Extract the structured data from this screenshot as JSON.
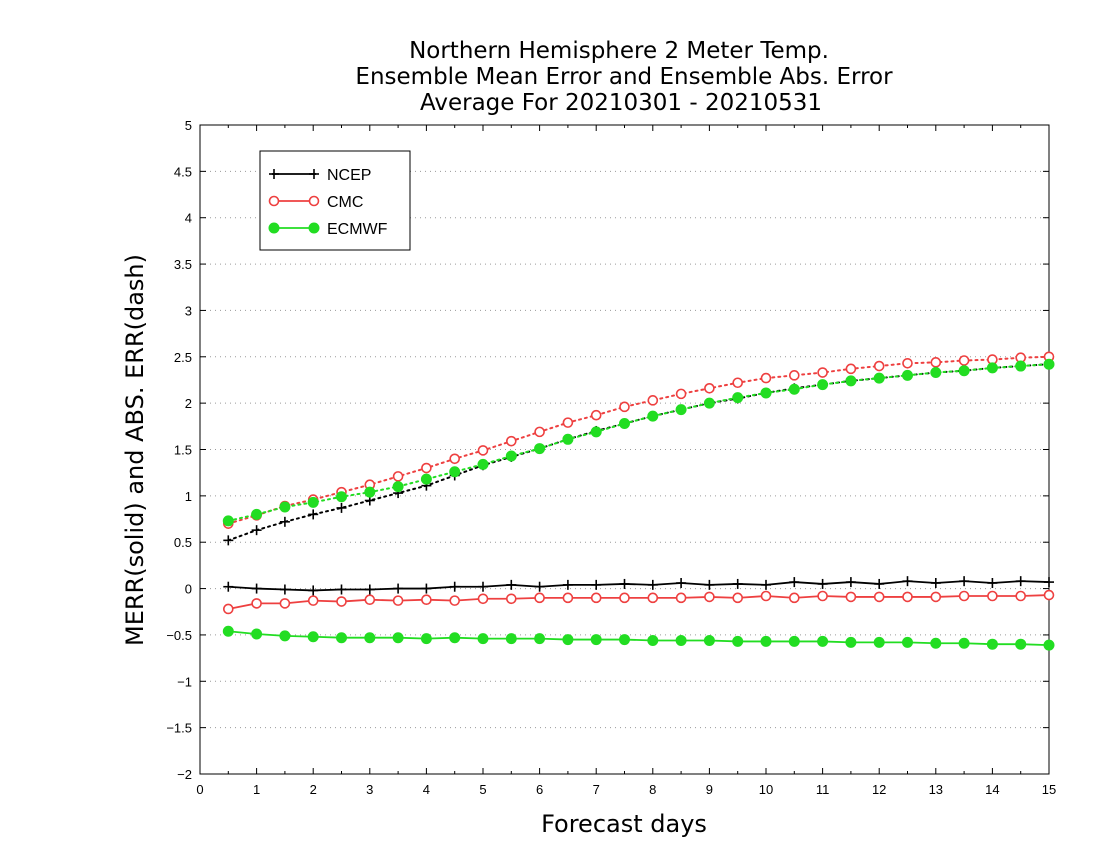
{
  "chart_data": {
    "type": "line",
    "title": [
      "Northern Hemisphere 2 Meter Temp.",
      "Ensemble Mean Error and Ensemble Abs. Error",
      "Average For 20210301 - 20210531"
    ],
    "xlabel": "Forecast days",
    "ylabel": "MERR(solid) and ABS. ERR(dash)",
    "xlim": [
      0,
      15
    ],
    "ylim": [
      -2,
      5
    ],
    "xticks": [
      0,
      1,
      2,
      3,
      4,
      5,
      6,
      7,
      8,
      9,
      10,
      11,
      12,
      13,
      14,
      15
    ],
    "xtick_labels": [
      "0",
      "1",
      "2",
      "3",
      "4",
      "5",
      "6",
      "7",
      "8",
      "9",
      "10",
      "11",
      "12",
      "13",
      "14",
      "15"
    ],
    "yticks": [
      -2,
      -1.5,
      -1,
      -0.5,
      0,
      0.5,
      1,
      1.5,
      2,
      2.5,
      3,
      3.5,
      4,
      4.5,
      5
    ],
    "ytick_labels": [
      "−2",
      "−1.5",
      "−1",
      "−0.5",
      "0",
      "0.5",
      "1",
      "1.5",
      "2",
      "2.5",
      "3",
      "3.5",
      "4",
      "4.5",
      "5"
    ],
    "grid": "dotted horizontal",
    "legend_position": "top-left",
    "x": [
      0.5,
      1,
      1.5,
      2,
      2.5,
      3,
      3.5,
      4,
      4.5,
      5,
      5.5,
      6,
      6.5,
      7,
      7.5,
      8,
      8.5,
      9,
      9.5,
      10,
      10.5,
      11,
      11.5,
      12,
      12.5,
      13,
      13.5,
      14,
      14.5,
      15
    ],
    "series": [
      {
        "name": "NCEP",
        "color": "#000000",
        "marker": "plus",
        "merr": [
          0.02,
          0.0,
          -0.01,
          -0.02,
          -0.01,
          -0.01,
          0.0,
          0.0,
          0.02,
          0.02,
          0.04,
          0.02,
          0.04,
          0.04,
          0.05,
          0.04,
          0.06,
          0.04,
          0.05,
          0.04,
          0.07,
          0.05,
          0.07,
          0.05,
          0.08,
          0.06,
          0.08,
          0.06,
          0.08,
          0.07
        ],
        "abs_err": [
          0.52,
          0.63,
          0.72,
          0.8,
          0.87,
          0.95,
          1.03,
          1.11,
          1.22,
          1.33,
          1.42,
          1.51,
          1.61,
          1.7,
          1.78,
          1.86,
          1.93,
          2.0,
          2.05,
          2.11,
          2.16,
          2.2,
          2.24,
          2.27,
          2.3,
          2.33,
          2.35,
          2.38,
          2.4,
          2.42
        ]
      },
      {
        "name": "CMC",
        "color": "#ee4040",
        "marker": "open-circle",
        "merr": [
          -0.22,
          -0.16,
          -0.16,
          -0.13,
          -0.14,
          -0.12,
          -0.13,
          -0.12,
          -0.13,
          -0.11,
          -0.11,
          -0.1,
          -0.1,
          -0.1,
          -0.1,
          -0.1,
          -0.1,
          -0.09,
          -0.1,
          -0.08,
          -0.1,
          -0.08,
          -0.09,
          -0.09,
          -0.09,
          -0.09,
          -0.08,
          -0.08,
          -0.08,
          -0.07
        ],
        "abs_err": [
          0.7,
          0.79,
          0.89,
          0.96,
          1.04,
          1.12,
          1.21,
          1.3,
          1.4,
          1.49,
          1.59,
          1.69,
          1.79,
          1.87,
          1.96,
          2.03,
          2.1,
          2.16,
          2.22,
          2.27,
          2.3,
          2.33,
          2.37,
          2.4,
          2.43,
          2.44,
          2.46,
          2.47,
          2.49,
          2.5
        ]
      },
      {
        "name": "ECMWF",
        "color": "#22dd22",
        "marker": "filled-circle",
        "merr": [
          -0.46,
          -0.49,
          -0.51,
          -0.52,
          -0.53,
          -0.53,
          -0.53,
          -0.54,
          -0.53,
          -0.54,
          -0.54,
          -0.54,
          -0.55,
          -0.55,
          -0.55,
          -0.56,
          -0.56,
          -0.56,
          -0.57,
          -0.57,
          -0.57,
          -0.57,
          -0.58,
          -0.58,
          -0.58,
          -0.59,
          -0.59,
          -0.6,
          -0.6,
          -0.61
        ],
        "abs_err": [
          0.73,
          0.8,
          0.88,
          0.93,
          0.99,
          1.04,
          1.1,
          1.18,
          1.26,
          1.34,
          1.43,
          1.51,
          1.61,
          1.69,
          1.78,
          1.86,
          1.93,
          2.0,
          2.06,
          2.11,
          2.15,
          2.2,
          2.24,
          2.27,
          2.3,
          2.33,
          2.35,
          2.38,
          2.4,
          2.42
        ]
      }
    ]
  }
}
